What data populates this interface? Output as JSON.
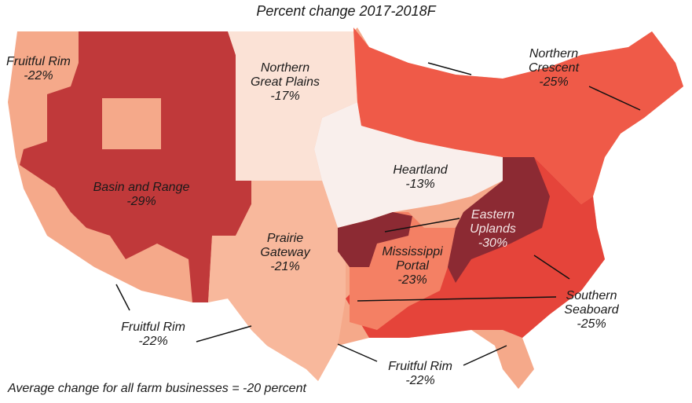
{
  "title": "Percent change 2017-2018F",
  "footnote": "Average change for all farm businesses = -20 percent",
  "regions": {
    "fruitful_rim": {
      "name": "Fruitful Rim",
      "change": "-22%",
      "color": "#f5a98a"
    },
    "basin_and_range": {
      "name": "Basin and Range",
      "change": "-29%",
      "color": "#c0393a"
    },
    "northern_great_plains": {
      "name_line1": "Northern",
      "name_line2": "Great Plains",
      "change": "-17%",
      "color": "#fbe2d6"
    },
    "heartland": {
      "name": "Heartland",
      "change": "-13%",
      "color": "#f9efec"
    },
    "northern_crescent": {
      "name_line1": "Northern",
      "name_line2": "Crescent",
      "change": "-25%",
      "color": "#ef5a48"
    },
    "prairie_gateway": {
      "name_line1": "Prairie",
      "name_line2": "Gateway",
      "change": "-21%",
      "color": "#f8b89c"
    },
    "mississippi_portal": {
      "name_line1": "Mississippi",
      "name_line2": "Portal",
      "change": "-23%",
      "color": "#f48064"
    },
    "eastern_uplands": {
      "name_line1": "Eastern",
      "name_line2": "Uplands",
      "change": "-30%",
      "color": "#8c2a33"
    },
    "southern_seaboard": {
      "name_line1": "Southern",
      "name_line2": "Seaboard",
      "change": "-25%",
      "color": "#e5443a"
    }
  }
}
